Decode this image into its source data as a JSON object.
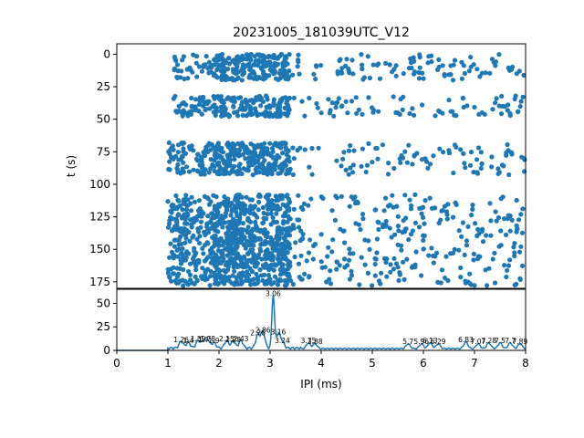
{
  "chart_data": [
    {
      "type": "scatter",
      "title": "20231005_181039UTC_V12",
      "xlabel": "",
      "ylabel": "t (s)",
      "xlim": [
        0,
        8
      ],
      "ylim": [
        180,
        -8
      ],
      "y_inverted": true,
      "grid": false,
      "y_ticks": [
        "0",
        "25",
        "50",
        "75",
        "100",
        "125",
        "150",
        "175"
      ],
      "marker_color": "#1f77b4",
      "note_points": "dense scatter of inter-pulse intervals (x, ms) versus time (y, s); points concentrated in bursts near t = 5–20, 32–48, 68–93, 110–178 s, densest around x = 2–3.3 ms",
      "bursts": [
        {
          "t_range": [
            0,
            20
          ],
          "x_range": [
            1.1,
            8.0
          ]
        },
        {
          "t_range": [
            32,
            48
          ],
          "x_range": [
            1.1,
            8.0
          ]
        },
        {
          "t_range": [
            68,
            93
          ],
          "x_range": [
            1.0,
            8.0
          ]
        },
        {
          "t_range": [
            108,
            178
          ],
          "x_range": [
            1.0,
            8.0
          ]
        }
      ]
    },
    {
      "type": "line",
      "xlabel": "IPI (ms)",
      "ylabel": "",
      "xlim": [
        0,
        8
      ],
      "ylim": [
        0,
        65
      ],
      "x_ticks": [
        "0",
        "1",
        "2",
        "3",
        "4",
        "5",
        "6",
        "7",
        "8"
      ],
      "y_ticks": [
        "0",
        "25",
        "50"
      ],
      "line_color": "#1f77b4",
      "grid": false,
      "peaks": [
        {
          "x": 1.26,
          "y": 7,
          "label": "1.26"
        },
        {
          "x": 1.4,
          "y": 6,
          "label": "1.4"
        },
        {
          "x": 1.59,
          "y": 8,
          "label": "1.59"
        },
        {
          "x": 1.7,
          "y": 7,
          "label": "1.7"
        },
        {
          "x": 1.78,
          "y": 8,
          "label": "1.78"
        },
        {
          "x": 1.9,
          "y": 6,
          "label": "1.9"
        },
        {
          "x": 2.15,
          "y": 8,
          "label": "2.15"
        },
        {
          "x": 2.28,
          "y": 7,
          "label": "2.28"
        },
        {
          "x": 2.43,
          "y": 8,
          "label": "2.43"
        },
        {
          "x": 2.76,
          "y": 14,
          "label": "2.76"
        },
        {
          "x": 2.86,
          "y": 17,
          "label": "2.86"
        },
        {
          "x": 3.06,
          "y": 56,
          "label": "3.06"
        },
        {
          "x": 3.16,
          "y": 15,
          "label": "3.16"
        },
        {
          "x": 3.24,
          "y": 6,
          "label": "3.24"
        },
        {
          "x": 3.75,
          "y": 6,
          "label": "3.75"
        },
        {
          "x": 3.88,
          "y": 5,
          "label": "3.88"
        },
        {
          "x": 5.7,
          "y": 5,
          "label": "5.7"
        },
        {
          "x": 5.96,
          "y": 5,
          "label": "5.96"
        },
        {
          "x": 6.13,
          "y": 6,
          "label": "6.13"
        },
        {
          "x": 6.29,
          "y": 5,
          "label": "6.29"
        },
        {
          "x": 6.83,
          "y": 7,
          "label": "6.83"
        },
        {
          "x": 7.07,
          "y": 5,
          "label": "7.07"
        },
        {
          "x": 7.28,
          "y": 6,
          "label": "7.28"
        },
        {
          "x": 7.5,
          "y": 6,
          "label": "7.5"
        },
        {
          "x": 7.7,
          "y": 6,
          "label": "7.7"
        },
        {
          "x": 7.89,
          "y": 5,
          "label": "7.89"
        }
      ]
    }
  ]
}
